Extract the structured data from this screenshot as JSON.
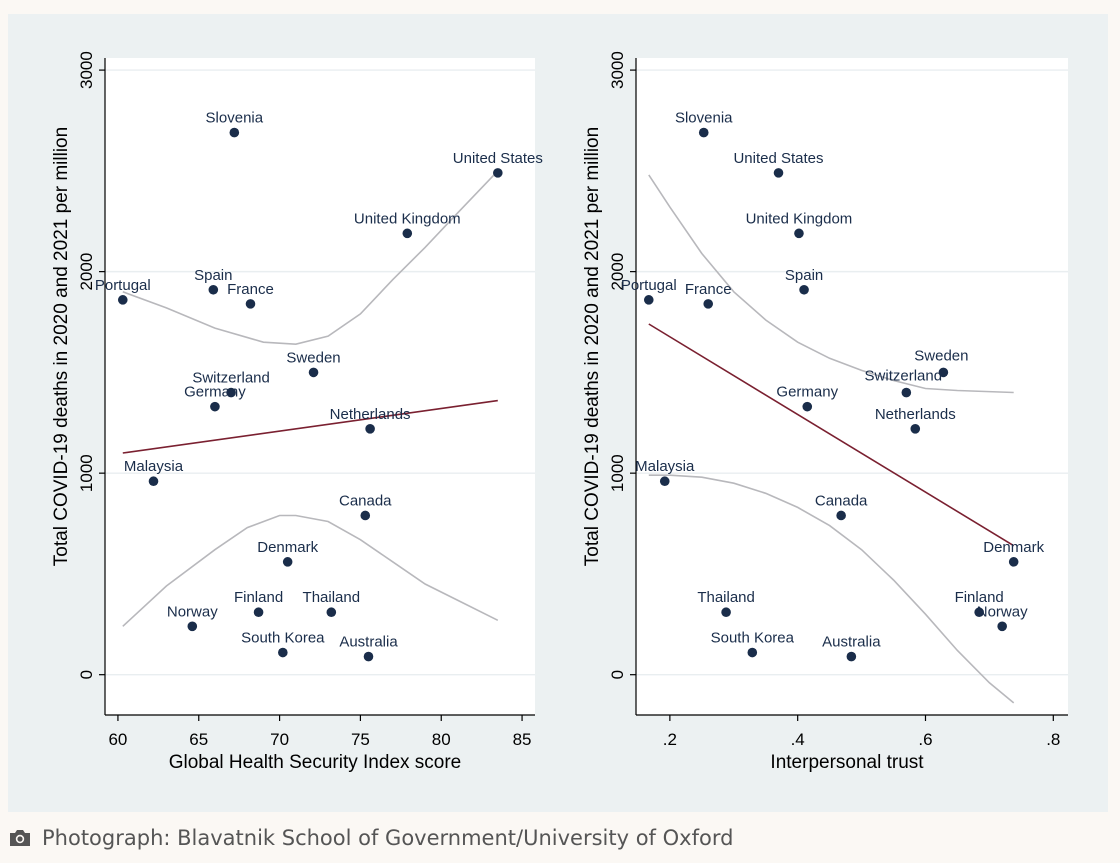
{
  "caption": {
    "text": "Photograph: Blavatnik School of Government/University of Oxford",
    "icon": "camera-icon"
  },
  "colors": {
    "background": "#ecf1f2",
    "marker": "#1a2d4a",
    "linear_fit": "#7a2030",
    "ci_band": "#b8b8bc"
  },
  "chart_data": [
    {
      "type": "scatter",
      "title": "",
      "xlabel": "Global Health Security Index score",
      "ylabel": "Total COVID-19 deaths in 2020 and 2021 per million",
      "xlim": [
        59.2,
        85.8
      ],
      "ylim": [
        -200,
        3060
      ],
      "x_ticks": [
        60,
        65,
        70,
        75,
        80,
        85
      ],
      "x_tick_labels": [
        "60",
        "65",
        "70",
        "75",
        "80",
        "85"
      ],
      "y_ticks": [
        0,
        1000,
        2000,
        3000
      ],
      "y_tick_labels": [
        "0",
        "1000",
        "2000",
        "3000"
      ],
      "grid": true,
      "points": [
        {
          "label": "Slovenia",
          "x": 67.2,
          "y": 2690
        },
        {
          "label": "United States",
          "x": 83.5,
          "y": 2490
        },
        {
          "label": "United Kingdom",
          "x": 77.9,
          "y": 2190
        },
        {
          "label": "Portugal",
          "x": 60.3,
          "y": 1860
        },
        {
          "label": "Spain",
          "x": 65.9,
          "y": 1910
        },
        {
          "label": "France",
          "x": 68.2,
          "y": 1840
        },
        {
          "label": "Sweden",
          "x": 72.1,
          "y": 1500
        },
        {
          "label": "Switzerland",
          "x": 67.0,
          "y": 1400
        },
        {
          "label": "Germany",
          "x": 66.0,
          "y": 1330
        },
        {
          "label": "Netherlands",
          "x": 75.6,
          "y": 1220
        },
        {
          "label": "Malaysia",
          "x": 62.2,
          "y": 960
        },
        {
          "label": "Canada",
          "x": 75.3,
          "y": 790
        },
        {
          "label": "Denmark",
          "x": 70.5,
          "y": 560
        },
        {
          "label": "Finland",
          "x": 68.7,
          "y": 310
        },
        {
          "label": "Thailand",
          "x": 73.2,
          "y": 310
        },
        {
          "label": "Norway",
          "x": 64.6,
          "y": 240
        },
        {
          "label": "South Korea",
          "x": 70.2,
          "y": 110
        },
        {
          "label": "Australia",
          "x": 75.5,
          "y": 90
        }
      ],
      "fit_line": [
        [
          60.3,
          1100
        ],
        [
          83.5,
          1360
        ]
      ],
      "ci_upper": [
        [
          60.3,
          1900
        ],
        [
          63,
          1820
        ],
        [
          66,
          1720
        ],
        [
          69,
          1650
        ],
        [
          71,
          1640
        ],
        [
          73,
          1680
        ],
        [
          75,
          1790
        ],
        [
          77,
          1960
        ],
        [
          79,
          2120
        ],
        [
          81,
          2290
        ],
        [
          83.5,
          2500
        ]
      ],
      "ci_lower": [
        [
          60.3,
          240
        ],
        [
          63,
          440
        ],
        [
          66,
          620
        ],
        [
          68,
          730
        ],
        [
          70,
          790
        ],
        [
          71,
          790
        ],
        [
          73,
          760
        ],
        [
          75,
          670
        ],
        [
          77,
          560
        ],
        [
          79,
          450
        ],
        [
          81,
          370
        ],
        [
          83.5,
          270
        ]
      ]
    },
    {
      "type": "scatter",
      "title": "",
      "xlabel": "Interpersonal trust",
      "ylabel": "Total COVID-19 deaths in 2020 and 2021 per million",
      "xlim": [
        0.147,
        0.823
      ],
      "ylim": [
        -200,
        3060
      ],
      "x_ticks": [
        0.2,
        0.4,
        0.6,
        0.8
      ],
      "x_tick_labels": [
        ".2",
        ".4",
        ".6",
        ".8"
      ],
      "y_ticks": [
        0,
        1000,
        2000,
        3000
      ],
      "y_tick_labels": [
        "0",
        "1000",
        "2000",
        "3000"
      ],
      "grid": true,
      "points": [
        {
          "label": "Slovenia",
          "x": 0.253,
          "y": 2690
        },
        {
          "label": "United States",
          "x": 0.37,
          "y": 2490
        },
        {
          "label": "United Kingdom",
          "x": 0.402,
          "y": 2190
        },
        {
          "label": "Portugal",
          "x": 0.167,
          "y": 1860
        },
        {
          "label": "France",
          "x": 0.26,
          "y": 1840
        },
        {
          "label": "Spain",
          "x": 0.41,
          "y": 1910
        },
        {
          "label": "Sweden",
          "x": 0.628,
          "y": 1500
        },
        {
          "label": "Switzerland",
          "x": 0.57,
          "y": 1400
        },
        {
          "label": "Germany",
          "x": 0.415,
          "y": 1330
        },
        {
          "label": "Netherlands",
          "x": 0.584,
          "y": 1220
        },
        {
          "label": "Malaysia",
          "x": 0.192,
          "y": 960
        },
        {
          "label": "Canada",
          "x": 0.468,
          "y": 790
        },
        {
          "label": "Denmark",
          "x": 0.738,
          "y": 560
        },
        {
          "label": "Thailand",
          "x": 0.288,
          "y": 310
        },
        {
          "label": "Finland",
          "x": 0.684,
          "y": 310
        },
        {
          "label": "Norway",
          "x": 0.72,
          "y": 240
        },
        {
          "label": "South Korea",
          "x": 0.329,
          "y": 110
        },
        {
          "label": "Australia",
          "x": 0.484,
          "y": 90
        }
      ],
      "fit_line": [
        [
          0.167,
          1740
        ],
        [
          0.738,
          640
        ]
      ],
      "ci_upper": [
        [
          0.167,
          2480
        ],
        [
          0.2,
          2320
        ],
        [
          0.25,
          2090
        ],
        [
          0.3,
          1900
        ],
        [
          0.35,
          1760
        ],
        [
          0.4,
          1650
        ],
        [
          0.45,
          1570
        ],
        [
          0.5,
          1510
        ],
        [
          0.55,
          1460
        ],
        [
          0.6,
          1420
        ],
        [
          0.65,
          1410
        ],
        [
          0.738,
          1400
        ]
      ],
      "ci_lower": [
        [
          0.167,
          990
        ],
        [
          0.2,
          990
        ],
        [
          0.25,
          980
        ],
        [
          0.3,
          950
        ],
        [
          0.35,
          900
        ],
        [
          0.4,
          830
        ],
        [
          0.45,
          740
        ],
        [
          0.5,
          620
        ],
        [
          0.55,
          470
        ],
        [
          0.6,
          300
        ],
        [
          0.65,
          120
        ],
        [
          0.7,
          -40
        ],
        [
          0.738,
          -140
        ]
      ]
    }
  ]
}
